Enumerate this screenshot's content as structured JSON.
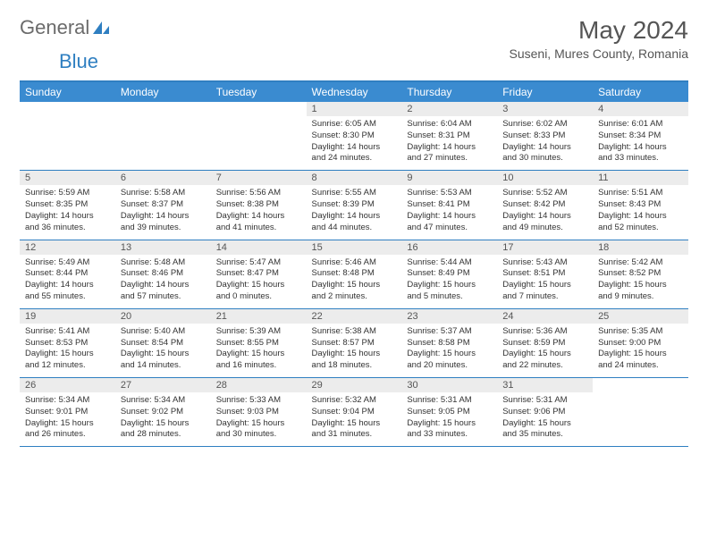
{
  "brand": {
    "part1": "General",
    "part2": "Blue"
  },
  "title": "May 2024",
  "location": "Suseni, Mures County, Romania",
  "colors": {
    "header_bg": "#3a8bd0",
    "rule": "#2f7fc1",
    "daynum_bg": "#ececec",
    "text": "#333333",
    "title_text": "#555555"
  },
  "weekdays": [
    "Sunday",
    "Monday",
    "Tuesday",
    "Wednesday",
    "Thursday",
    "Friday",
    "Saturday"
  ],
  "weeks": [
    [
      {
        "n": "",
        "sr": "",
        "ss": "",
        "dl": ""
      },
      {
        "n": "",
        "sr": "",
        "ss": "",
        "dl": ""
      },
      {
        "n": "",
        "sr": "",
        "ss": "",
        "dl": ""
      },
      {
        "n": "1",
        "sr": "6:05 AM",
        "ss": "8:30 PM",
        "dl": "14 hours and 24 minutes."
      },
      {
        "n": "2",
        "sr": "6:04 AM",
        "ss": "8:31 PM",
        "dl": "14 hours and 27 minutes."
      },
      {
        "n": "3",
        "sr": "6:02 AM",
        "ss": "8:33 PM",
        "dl": "14 hours and 30 minutes."
      },
      {
        "n": "4",
        "sr": "6:01 AM",
        "ss": "8:34 PM",
        "dl": "14 hours and 33 minutes."
      }
    ],
    [
      {
        "n": "5",
        "sr": "5:59 AM",
        "ss": "8:35 PM",
        "dl": "14 hours and 36 minutes."
      },
      {
        "n": "6",
        "sr": "5:58 AM",
        "ss": "8:37 PM",
        "dl": "14 hours and 39 minutes."
      },
      {
        "n": "7",
        "sr": "5:56 AM",
        "ss": "8:38 PM",
        "dl": "14 hours and 41 minutes."
      },
      {
        "n": "8",
        "sr": "5:55 AM",
        "ss": "8:39 PM",
        "dl": "14 hours and 44 minutes."
      },
      {
        "n": "9",
        "sr": "5:53 AM",
        "ss": "8:41 PM",
        "dl": "14 hours and 47 minutes."
      },
      {
        "n": "10",
        "sr": "5:52 AM",
        "ss": "8:42 PM",
        "dl": "14 hours and 49 minutes."
      },
      {
        "n": "11",
        "sr": "5:51 AM",
        "ss": "8:43 PM",
        "dl": "14 hours and 52 minutes."
      }
    ],
    [
      {
        "n": "12",
        "sr": "5:49 AM",
        "ss": "8:44 PM",
        "dl": "14 hours and 55 minutes."
      },
      {
        "n": "13",
        "sr": "5:48 AM",
        "ss": "8:46 PM",
        "dl": "14 hours and 57 minutes."
      },
      {
        "n": "14",
        "sr": "5:47 AM",
        "ss": "8:47 PM",
        "dl": "15 hours and 0 minutes."
      },
      {
        "n": "15",
        "sr": "5:46 AM",
        "ss": "8:48 PM",
        "dl": "15 hours and 2 minutes."
      },
      {
        "n": "16",
        "sr": "5:44 AM",
        "ss": "8:49 PM",
        "dl": "15 hours and 5 minutes."
      },
      {
        "n": "17",
        "sr": "5:43 AM",
        "ss": "8:51 PM",
        "dl": "15 hours and 7 minutes."
      },
      {
        "n": "18",
        "sr": "5:42 AM",
        "ss": "8:52 PM",
        "dl": "15 hours and 9 minutes."
      }
    ],
    [
      {
        "n": "19",
        "sr": "5:41 AM",
        "ss": "8:53 PM",
        "dl": "15 hours and 12 minutes."
      },
      {
        "n": "20",
        "sr": "5:40 AM",
        "ss": "8:54 PM",
        "dl": "15 hours and 14 minutes."
      },
      {
        "n": "21",
        "sr": "5:39 AM",
        "ss": "8:55 PM",
        "dl": "15 hours and 16 minutes."
      },
      {
        "n": "22",
        "sr": "5:38 AM",
        "ss": "8:57 PM",
        "dl": "15 hours and 18 minutes."
      },
      {
        "n": "23",
        "sr": "5:37 AM",
        "ss": "8:58 PM",
        "dl": "15 hours and 20 minutes."
      },
      {
        "n": "24",
        "sr": "5:36 AM",
        "ss": "8:59 PM",
        "dl": "15 hours and 22 minutes."
      },
      {
        "n": "25",
        "sr": "5:35 AM",
        "ss": "9:00 PM",
        "dl": "15 hours and 24 minutes."
      }
    ],
    [
      {
        "n": "26",
        "sr": "5:34 AM",
        "ss": "9:01 PM",
        "dl": "15 hours and 26 minutes."
      },
      {
        "n": "27",
        "sr": "5:34 AM",
        "ss": "9:02 PM",
        "dl": "15 hours and 28 minutes."
      },
      {
        "n": "28",
        "sr": "5:33 AM",
        "ss": "9:03 PM",
        "dl": "15 hours and 30 minutes."
      },
      {
        "n": "29",
        "sr": "5:32 AM",
        "ss": "9:04 PM",
        "dl": "15 hours and 31 minutes."
      },
      {
        "n": "30",
        "sr": "5:31 AM",
        "ss": "9:05 PM",
        "dl": "15 hours and 33 minutes."
      },
      {
        "n": "31",
        "sr": "5:31 AM",
        "ss": "9:06 PM",
        "dl": "15 hours and 35 minutes."
      },
      {
        "n": "",
        "sr": "",
        "ss": "",
        "dl": ""
      }
    ]
  ],
  "labels": {
    "sunrise": "Sunrise:",
    "sunset": "Sunset:",
    "daylight": "Daylight:"
  }
}
